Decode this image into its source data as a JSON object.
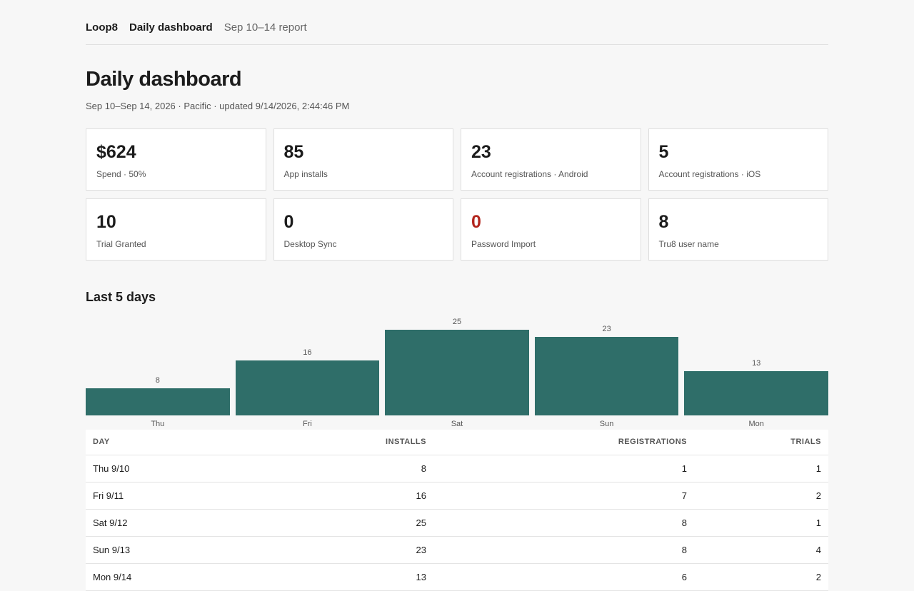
{
  "nav": {
    "brand": "Loop8",
    "current": "Daily dashboard",
    "sub": "Sep 10–14 report"
  },
  "page": {
    "title": "Daily dashboard",
    "meta": "Sep 10–Sep 14, 2026 · Pacific · updated 9/14/2026, 2:44:46 PM"
  },
  "cards": [
    {
      "value": "$624",
      "label": "Spend · 50%"
    },
    {
      "value": "85",
      "label": "App installs"
    },
    {
      "value": "23",
      "label": "Account registrations · Android"
    },
    {
      "value": "5",
      "label": "Account registrations · iOS"
    },
    {
      "value": "10",
      "label": "Trial Granted"
    },
    {
      "value": "0",
      "label": "Desktop Sync"
    },
    {
      "value": "0",
      "label": "Password Import",
      "alert_color": "#b3261e"
    },
    {
      "value": "8",
      "label": "Tru8 user name"
    }
  ],
  "section": {
    "title": "Last 5 days"
  },
  "colors": {
    "bar": "#2f6e69",
    "alert": "#b3261e"
  },
  "chart_data": {
    "type": "bar",
    "categories": [
      "Thu",
      "Fri",
      "Sat",
      "Sun",
      "Mon"
    ],
    "values": [
      8,
      16,
      25,
      23,
      13
    ],
    "title": "Last 5 days",
    "xlabel": "",
    "ylabel": "",
    "ylim": [
      0,
      25
    ],
    "grid": false
  },
  "table": {
    "headers": {
      "day": "DAY",
      "installs": "INSTALLS",
      "registrations": "REGISTRATIONS",
      "trials": "TRIALS"
    },
    "rows": [
      {
        "day": "Thu 9/10",
        "installs": "8",
        "registrations": "1",
        "trials": "1"
      },
      {
        "day": "Fri 9/11",
        "installs": "16",
        "registrations": "7",
        "trials": "2"
      },
      {
        "day": "Sat 9/12",
        "installs": "25",
        "registrations": "8",
        "trials": "1"
      },
      {
        "day": "Sun 9/13",
        "installs": "23",
        "registrations": "8",
        "trials": "4"
      },
      {
        "day": "Mon 9/14",
        "installs": "13",
        "registrations": "6",
        "trials": "2"
      }
    ]
  }
}
